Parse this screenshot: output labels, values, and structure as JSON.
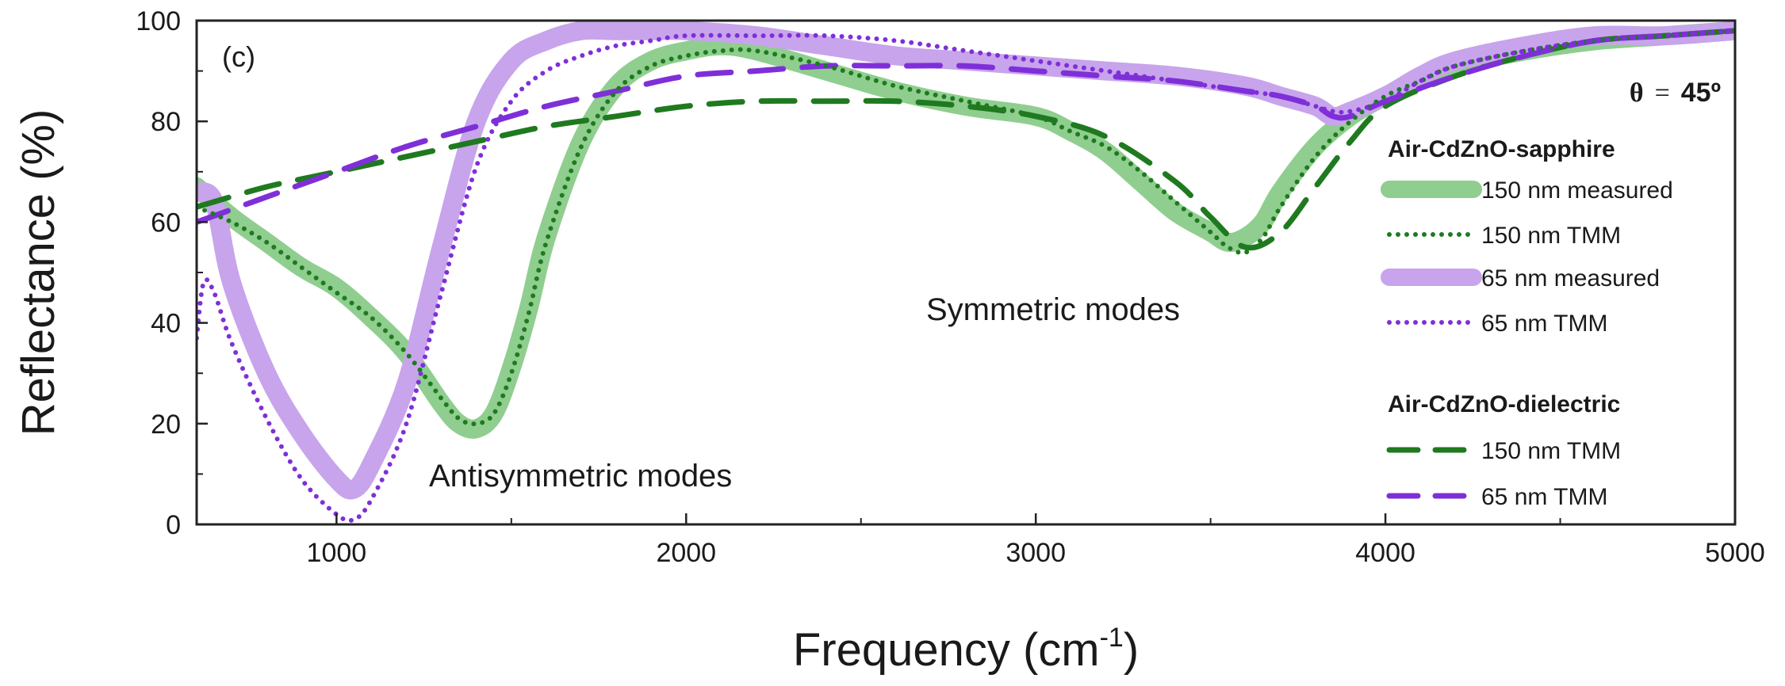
{
  "chart_data": {
    "type": "line",
    "panel_label": "(c)",
    "angle_label": {
      "symbol": "θ",
      "equals": "=",
      "value": "45º"
    },
    "xlabel": {
      "text": "Frequency (cm",
      "sup": "-1",
      "close": ")"
    },
    "ylabel": "Reflectance (%)",
    "xlim": [
      600,
      5000
    ],
    "ylim": [
      0,
      100
    ],
    "xticks": [
      1000,
      2000,
      3000,
      4000,
      5000
    ],
    "yticks": [
      0,
      20,
      40,
      60,
      80,
      100
    ],
    "annotations": {
      "symmetric": "Symmetric modes",
      "antisymmetric": "Antisymmetric modes"
    },
    "legend": {
      "placement": "right",
      "group1_title": "Air-CdZnO-sapphire",
      "group2_title": "Air-CdZnO-dielectric",
      "entries": [
        {
          "label": "150 nm measured"
        },
        {
          "label": "150 nm TMM"
        },
        {
          "label": "65 nm measured"
        },
        {
          "label": "65 nm TMM"
        },
        {
          "label": "150 nm TMM"
        },
        {
          "label": "65 nm TMM"
        }
      ]
    },
    "series": [
      {
        "name": "150 nm measured",
        "group": "Air-CdZnO-sapphire",
        "style": "thick",
        "color": "#8fce8f",
        "x": [
          600,
          700,
          800,
          900,
          1000,
          1100,
          1200,
          1300,
          1350,
          1400,
          1450,
          1500,
          1550,
          1600,
          1700,
          1800,
          1900,
          2000,
          2100,
          2200,
          2400,
          2600,
          2800,
          3000,
          3100,
          3200,
          3300,
          3400,
          3500,
          3550,
          3600,
          3650,
          3700,
          3800,
          3900,
          4000,
          4100,
          4200,
          4400,
          4600,
          4800,
          5000
        ],
        "y": [
          67,
          61,
          56,
          51,
          47,
          41,
          34,
          24,
          20,
          19,
          22,
          31,
          43,
          57,
          76,
          87,
          92,
          94,
          95,
          94,
          90,
          86,
          83,
          81,
          78,
          74,
          68,
          62,
          58,
          56,
          57,
          60,
          66,
          75,
          81,
          85,
          88,
          91,
          94,
          96,
          97,
          98
        ]
      },
      {
        "name": "150 nm TMM",
        "group": "Air-CdZnO-sapphire",
        "style": "dotted",
        "color": "#1f7a1f",
        "x": [
          600,
          700,
          800,
          900,
          1000,
          1100,
          1200,
          1300,
          1350,
          1400,
          1450,
          1500,
          1550,
          1600,
          1700,
          1800,
          1900,
          2000,
          2100,
          2200,
          2400,
          2600,
          2800,
          3000,
          3100,
          3200,
          3300,
          3400,
          3500,
          3550,
          3600,
          3650,
          3700,
          3800,
          3900,
          4000,
          4100,
          4200,
          4400,
          4600,
          4800,
          5000
        ],
        "y": [
          63,
          60,
          56,
          51,
          46,
          41,
          34,
          25,
          21,
          20,
          22,
          30,
          42,
          56,
          75,
          86,
          91,
          93,
          94,
          94,
          91,
          87,
          84,
          81,
          78,
          75,
          70,
          64,
          58,
          55,
          54,
          57,
          63,
          73,
          80,
          85,
          88,
          91,
          94,
          96,
          97,
          98
        ]
      },
      {
        "name": "65 nm measured",
        "group": "Air-CdZnO-sapphire",
        "style": "thick",
        "color": "#c8a4ec",
        "x": [
          600,
          650,
          700,
          800,
          900,
          1000,
          1050,
          1100,
          1200,
          1300,
          1400,
          1500,
          1600,
          1700,
          1800,
          1900,
          2000,
          2200,
          2400,
          2600,
          2800,
          3000,
          3200,
          3400,
          3600,
          3700,
          3800,
          3850,
          3900,
          4000,
          4100,
          4200,
          4400,
          4600,
          4800,
          5000
        ],
        "y": [
          66,
          64,
          48,
          30,
          18,
          9,
          7,
          12,
          28,
          55,
          80,
          92,
          96,
          98,
          98,
          98,
          98,
          97,
          95,
          93,
          92,
          91,
          90,
          89,
          87,
          85,
          83,
          81,
          82,
          85,
          89,
          92,
          95,
          97,
          97,
          98
        ]
      },
      {
        "name": "65 nm TMM",
        "group": "Air-CdZnO-sapphire",
        "style": "dotted",
        "color": "#7f2fd8",
        "x": [
          600,
          620,
          650,
          700,
          800,
          900,
          1000,
          1050,
          1100,
          1200,
          1300,
          1400,
          1500,
          1600,
          1700,
          1800,
          1900,
          2000,
          2200,
          2400,
          2600,
          2800,
          3000,
          3200,
          3400,
          3600,
          3700,
          3800,
          3850,
          3900,
          4000,
          4100,
          4200,
          4400,
          4600,
          4800,
          5000
        ],
        "y": [
          37,
          48,
          46,
          36,
          21,
          9,
          2,
          1,
          5,
          20,
          46,
          71,
          84,
          90,
          93,
          95,
          96,
          97,
          97,
          97,
          96,
          94,
          92,
          90,
          88,
          86,
          85,
          83,
          82,
          82,
          84,
          88,
          91,
          94,
          96,
          97,
          98
        ]
      },
      {
        "name": "150 nm TMM",
        "group": "Air-CdZnO-dielectric",
        "style": "dashed",
        "color": "#1f7a1f",
        "x": [
          600,
          800,
          1000,
          1200,
          1400,
          1600,
          1800,
          2000,
          2200,
          2400,
          2600,
          2800,
          3000,
          3200,
          3400,
          3500,
          3600,
          3700,
          3800,
          3900,
          4000,
          4200,
          4400,
          4600,
          4800,
          5000
        ],
        "y": [
          63,
          67,
          70,
          73,
          76,
          79,
          81,
          83,
          84,
          84,
          84,
          83,
          81,
          77,
          68,
          61,
          55,
          58,
          67,
          76,
          83,
          89,
          93,
          96,
          97,
          98
        ]
      },
      {
        "name": "65 nm TMM",
        "group": "Air-CdZnO-dielectric",
        "style": "dashed",
        "color": "#7f2fd8",
        "x": [
          600,
          800,
          1000,
          1200,
          1400,
          1600,
          1800,
          2000,
          2200,
          2400,
          2600,
          2800,
          3000,
          3200,
          3400,
          3600,
          3700,
          3800,
          3850,
          3900,
          4000,
          4200,
          4400,
          4600,
          4800,
          5000
        ],
        "y": [
          60,
          65,
          70,
          75,
          79,
          83,
          86,
          89,
          90,
          91,
          91,
          91,
          90,
          89,
          88,
          86,
          85,
          83,
          81,
          81,
          84,
          89,
          93,
          96,
          97,
          98
        ]
      }
    ]
  }
}
